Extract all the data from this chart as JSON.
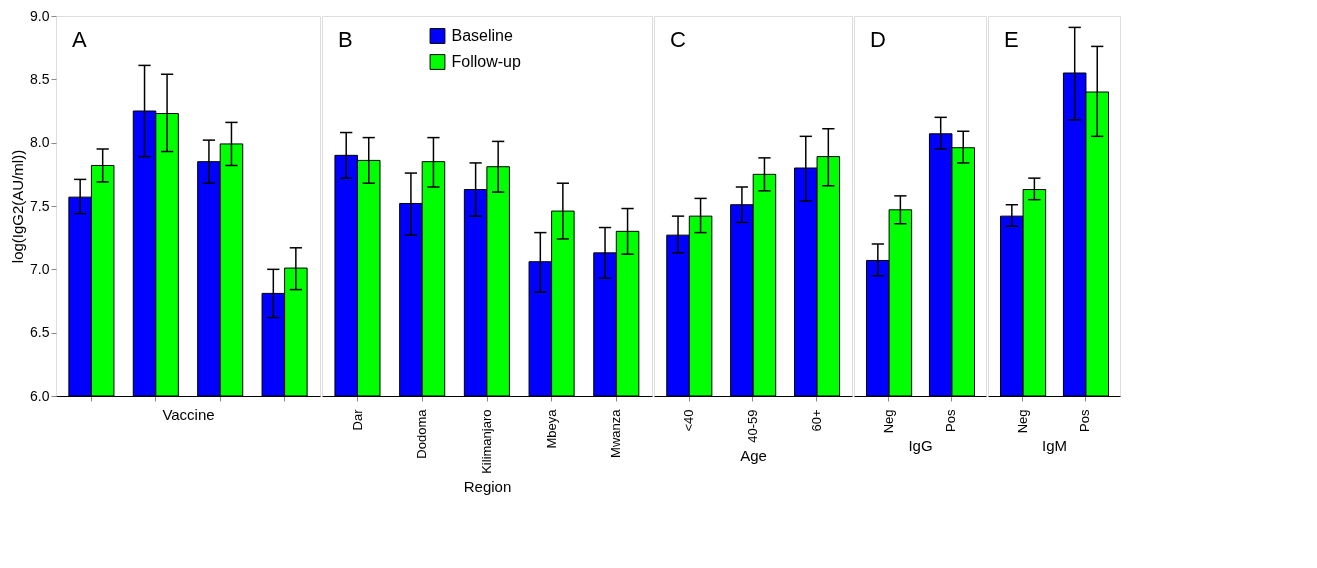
{
  "chart_data": [
    {
      "type": "bar",
      "title": "A",
      "xlabel": "Vaccine",
      "ylabel": "log(IgG2(AU/ml))",
      "categories": [
        null,
        null,
        null,
        null
      ],
      "ylim": [
        6.0,
        9.0
      ],
      "yticks": [
        {
          "value": 6,
          "label": "6.0"
        },
        {
          "value": 6.5,
          "label": "6.5"
        },
        {
          "value": 7,
          "label": "7.0"
        },
        {
          "value": 7.5,
          "label": "7.5"
        },
        {
          "value": 8,
          "label": "8.0"
        },
        {
          "value": 8.5,
          "label": "8.5"
        },
        {
          "value": 9,
          "label": "9.0"
        }
      ],
      "grid": false,
      "legend": false,
      "series": [
        {
          "color": "#0000ff",
          "values": [
            7.57,
            8.25,
            7.85,
            6.81
          ],
          "errors": [
            [
              7.44,
              7.71
            ],
            [
              7.89,
              8.61
            ],
            [
              7.68,
              8.02
            ],
            [
              6.62,
              7.0
            ]
          ]
        },
        {
          "color": "#00ff00",
          "values": [
            7.82,
            8.23,
            7.99,
            7.01
          ],
          "errors": [
            [
              7.69,
              7.95
            ],
            [
              7.93,
              8.54
            ],
            [
              7.82,
              8.16
            ],
            [
              6.84,
              7.17
            ]
          ]
        }
      ]
    },
    {
      "type": "bar",
      "title": "B",
      "xlabel": "Region",
      "categories": [
        "Dar",
        "Dodoma",
        "Kilimanjaro",
        "Mbeya",
        "Mwanza"
      ],
      "ylim": [
        6.0,
        9.0
      ],
      "tick_labels": "x",
      "grid": false,
      "legend": "top right",
      "series": [
        {
          "name": "Baseline",
          "color": "#0000ff",
          "values": [
            7.9,
            7.52,
            7.63,
            7.06,
            7.13
          ],
          "errors": [
            [
              7.72,
              8.08
            ],
            [
              7.27,
              7.76
            ],
            [
              7.42,
              7.84
            ],
            [
              6.82,
              7.29
            ],
            [
              6.93,
              7.33
            ]
          ]
        },
        {
          "name": "Follow-up",
          "color": "#00ff00",
          "values": [
            7.86,
            7.85,
            7.81,
            7.46,
            7.3
          ],
          "errors": [
            [
              7.68,
              8.04
            ],
            [
              7.65,
              8.04
            ],
            [
              7.61,
              8.01
            ],
            [
              7.24,
              7.68
            ],
            [
              7.12,
              7.48
            ]
          ]
        }
      ]
    },
    {
      "type": "bar",
      "title": "C",
      "xlabel": "Age",
      "categories": [
        "<40",
        "40-59",
        "60+"
      ],
      "ylim": [
        6.0,
        9.0
      ],
      "tick_labels": "x",
      "grid": false,
      "legend": false,
      "series": [
        {
          "color": "#0000ff",
          "values": [
            7.27,
            7.51,
            7.8
          ],
          "errors": [
            [
              7.13,
              7.42
            ],
            [
              7.37,
              7.65
            ],
            [
              7.54,
              8.05
            ]
          ]
        },
        {
          "color": "#00ff00",
          "values": [
            7.42,
            7.75,
            7.89
          ],
          "errors": [
            [
              7.29,
              7.56
            ],
            [
              7.62,
              7.88
            ],
            [
              7.66,
              8.11
            ]
          ]
        }
      ]
    },
    {
      "type": "bar",
      "title": "D",
      "xlabel": "IgG",
      "categories": [
        "Neg",
        "Pos"
      ],
      "ylim": [
        6.0,
        9.0
      ],
      "tick_labels": "x",
      "grid": false,
      "legend": false,
      "series": [
        {
          "color": "#0000ff",
          "values": [
            7.07,
            8.07
          ],
          "errors": [
            [
              6.95,
              7.2
            ],
            [
              7.95,
              8.2
            ]
          ]
        },
        {
          "color": "#00ff00",
          "values": [
            7.47,
            7.96
          ],
          "errors": [
            [
              7.36,
              7.58
            ],
            [
              7.84,
              8.09
            ]
          ]
        }
      ]
    },
    {
      "type": "bar",
      "title": "E",
      "xlabel": "IgM",
      "categories": [
        "Neg",
        "Pos"
      ],
      "ylim": [
        6.0,
        9.0
      ],
      "tick_labels": "x",
      "grid": false,
      "legend": false,
      "series": [
        {
          "color": "#0000ff",
          "values": [
            7.42,
            8.55
          ],
          "errors": [
            [
              7.34,
              7.51
            ],
            [
              8.18,
              8.91
            ]
          ]
        },
        {
          "color": "#00ff00",
          "values": [
            7.63,
            8.4
          ],
          "errors": [
            [
              7.55,
              7.72
            ],
            [
              8.05,
              8.76
            ]
          ]
        }
      ]
    }
  ]
}
